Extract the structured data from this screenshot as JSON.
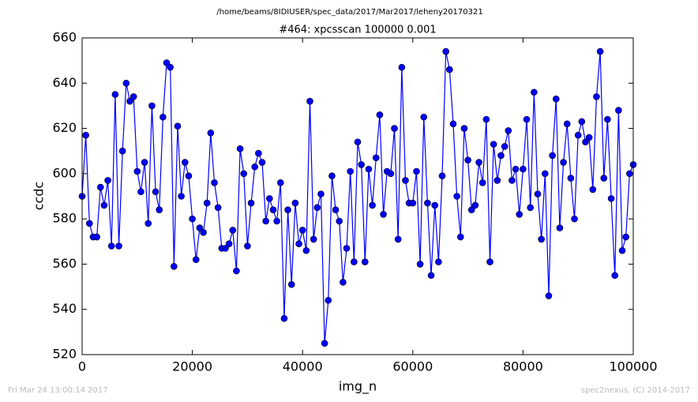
{
  "chart_data": {
    "type": "line",
    "suptitle": "/home/beams/8IDIUSER/spec_data/2017/Mar2017/leheny20170321",
    "title": "#464: xpcsscan 100000 0.001",
    "x_label": "img_n",
    "y_label": "ccdc",
    "footer_left": "Fri Mar 24 13:00:14 2017",
    "footer_right": "spec2nexus, (C) 2014-2017",
    "xlim": [
      0,
      100000
    ],
    "xticks": [
      0,
      20000,
      40000,
      60000,
      80000,
      100000
    ],
    "ylim": [
      520,
      660
    ],
    "yticks": [
      520,
      540,
      560,
      580,
      600,
      620,
      640,
      660
    ],
    "x": [
      0,
      667,
      1333,
      2000,
      2667,
      3333,
      4000,
      4667,
      5333,
      6000,
      6667,
      7333,
      8000,
      8667,
      9333,
      10000,
      10667,
      11333,
      12000,
      12667,
      13333,
      14000,
      14667,
      15333,
      16000,
      16667,
      17333,
      18000,
      18667,
      19333,
      20000,
      20667,
      21333,
      22000,
      22667,
      23333,
      24000,
      24667,
      25333,
      26000,
      26667,
      27333,
      28000,
      28667,
      29333,
      30000,
      30667,
      31333,
      32000,
      32667,
      33333,
      34000,
      34667,
      35333,
      36000,
      36667,
      37333,
      38000,
      38667,
      39333,
      40000,
      40667,
      41333,
      42000,
      42667,
      43333,
      44000,
      44667,
      45333,
      46000,
      46667,
      47333,
      48000,
      48667,
      49333,
      50000,
      50667,
      51333,
      52000,
      52667,
      53333,
      54000,
      54667,
      55333,
      56000,
      56667,
      57333,
      58000,
      58667,
      59333,
      60000,
      60667,
      61333,
      62000,
      62667,
      63333,
      64000,
      64667,
      65333,
      66000,
      66667,
      67333,
      68000,
      68667,
      69333,
      70000,
      70667,
      71333,
      72000,
      72667,
      73333,
      74000,
      74667,
      75333,
      76000,
      76667,
      77333,
      78000,
      78667,
      79333,
      80000,
      80667,
      81333,
      82000,
      82667,
      83333,
      84000,
      84667,
      85333,
      86000,
      86667,
      87333,
      88000,
      88667,
      89333,
      90000,
      90667,
      91333,
      92000,
      92667,
      93333,
      94000,
      94667,
      95333,
      96000,
      96667,
      97333,
      98000,
      98667,
      99333,
      100000
    ],
    "series": [
      {
        "name": "ccdc",
        "color": "#0000ff",
        "values": [
          590,
          617,
          578,
          572,
          572,
          594,
          586,
          597,
          568,
          635,
          568,
          610,
          640,
          632,
          634,
          601,
          592,
          605,
          578,
          630,
          592,
          584,
          625,
          649,
          647,
          559,
          621,
          590,
          605,
          599,
          580,
          562,
          576,
          574,
          587,
          618,
          596,
          585,
          567,
          567,
          569,
          575,
          557,
          611,
          600,
          568,
          587,
          603,
          609,
          605,
          579,
          589,
          584,
          579,
          596,
          536,
          584,
          551,
          587,
          569,
          575,
          566,
          632,
          571,
          585,
          591,
          525,
          544,
          599,
          584,
          579,
          552,
          567,
          601,
          561,
          614,
          604,
          561,
          602,
          586,
          607,
          626,
          582,
          601,
          600,
          620,
          571,
          647,
          597,
          587,
          587,
          601,
          560,
          625,
          587,
          555,
          586,
          561,
          599,
          654,
          646,
          622,
          590,
          572,
          620,
          606,
          584,
          586,
          605,
          596,
          624,
          561,
          613,
          597,
          608,
          612,
          619,
          597,
          602,
          582,
          602,
          624,
          585,
          636,
          591,
          571,
          600,
          546,
          608,
          633,
          576,
          605,
          622,
          598,
          580,
          617,
          623,
          614,
          616,
          593,
          634,
          654,
          598,
          624,
          589,
          555,
          628,
          566,
          572,
          600,
          604
        ]
      }
    ]
  }
}
